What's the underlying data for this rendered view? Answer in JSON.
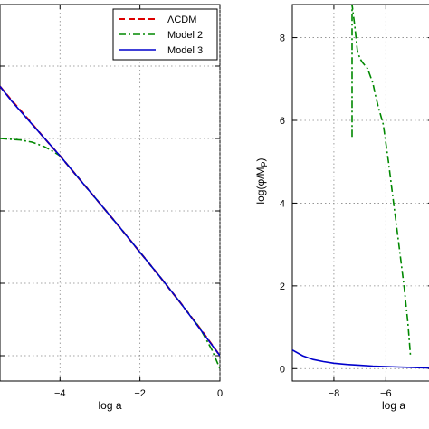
{
  "chart_data": [
    {
      "type": "line",
      "xlabel": "log a",
      "ylabel": "",
      "xlim": [
        -5.5,
        0
      ],
      "ylim": [
        -0.35,
        4.85
      ],
      "xticks": [
        -4,
        -2,
        0
      ],
      "xtick_labels": [
        "−4",
        "−2",
        "0"
      ],
      "yticks": [
        0,
        1,
        2,
        3,
        4
      ],
      "grid": true,
      "legend_position": "top-right",
      "legend": [
        "ΛCDM",
        "Model 2",
        "Model 3"
      ],
      "series": [
        {
          "name": "ΛCDM",
          "color": "#dd0000",
          "dash": "7,4",
          "x": [
            -5.5,
            -5.2,
            -4.8,
            -4.4,
            -4.0,
            -3.5,
            -3.0,
            -2.5,
            -2.0,
            -1.5,
            -1.0,
            -0.5,
            0.0
          ],
          "y": [
            3.72,
            3.52,
            3.27,
            3.01,
            2.76,
            2.43,
            2.1,
            1.77,
            1.43,
            1.09,
            0.74,
            0.38,
            0.0
          ]
        },
        {
          "name": "Model 2",
          "color": "#008800",
          "dash": "8,3,2,3",
          "x": [
            -5.5,
            -5.0,
            -4.7,
            -4.4,
            -4.2,
            -4.0,
            -3.5,
            -3.0,
            -2.5,
            -2.0,
            -1.5,
            -1.0,
            -0.5,
            -0.2,
            0.0
          ],
          "y": [
            3.0,
            2.98,
            2.95,
            2.89,
            2.83,
            2.76,
            2.43,
            2.1,
            1.77,
            1.43,
            1.09,
            0.74,
            0.38,
            0.08,
            -0.18
          ]
        },
        {
          "name": "Model 3",
          "color": "#0000cc",
          "dash": "",
          "x": [
            -5.5,
            -5.2,
            -4.8,
            -4.4,
            -4.0,
            -3.5,
            -3.0,
            -2.5,
            -2.0,
            -1.5,
            -1.0,
            -0.5,
            0.0
          ],
          "y": [
            3.72,
            3.51,
            3.26,
            3.01,
            2.76,
            2.43,
            2.1,
            1.77,
            1.43,
            1.09,
            0.74,
            0.37,
            0.0
          ]
        }
      ]
    },
    {
      "type": "line",
      "xlabel": "log a",
      "ylabel": "log(φ/M_P)",
      "xlim": [
        -9.6,
        -4.2
      ],
      "ylim": [
        -0.3,
        8.8
      ],
      "xticks": [
        -8,
        -6
      ],
      "xtick_labels": [
        "−8",
        "−6"
      ],
      "yticks": [
        0,
        2,
        4,
        6,
        8
      ],
      "ytick_labels": [
        "0",
        "2",
        "4",
        "6",
        "8"
      ],
      "grid": true,
      "series": [
        {
          "name": "Model 2",
          "color": "#008800",
          "dash": "8,3,2,3",
          "x": [
            -7.3,
            -7.3,
            -7.2,
            -7.1,
            -7.0,
            -6.9,
            -6.7,
            -6.5,
            -6.4,
            -6.3,
            -6.1,
            -5.9,
            -5.7,
            -5.5,
            -5.3,
            -5.15,
            -5.05
          ],
          "y": [
            5.6,
            8.8,
            8.3,
            7.7,
            7.5,
            7.4,
            7.25,
            6.9,
            6.6,
            6.35,
            5.9,
            5.0,
            4.0,
            3.0,
            2.0,
            1.1,
            0.3
          ]
        },
        {
          "name": "Model 3",
          "color": "#0000cc",
          "dash": "",
          "x": [
            -9.6,
            -9.2,
            -8.8,
            -8.4,
            -8.0,
            -7.5,
            -7.0,
            -6.5,
            -6.0,
            -5.5,
            -5.0,
            -4.5,
            -4.2
          ],
          "y": [
            0.45,
            0.31,
            0.22,
            0.17,
            0.13,
            0.1,
            0.08,
            0.06,
            0.05,
            0.04,
            0.03,
            0.02,
            0.02
          ]
        }
      ]
    }
  ]
}
